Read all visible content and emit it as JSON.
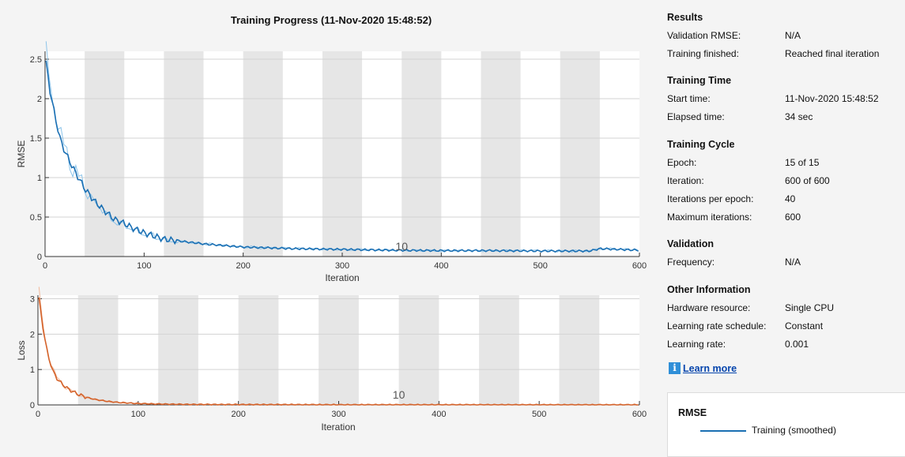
{
  "title": "Training Progress (11-Nov-2020 15:48:52)",
  "results": {
    "heading": "Results",
    "rows": [
      {
        "label": "Validation RMSE:",
        "value": "N/A"
      },
      {
        "label": "Training finished:",
        "value": "Reached final iteration"
      }
    ]
  },
  "training_time": {
    "heading": "Training Time",
    "rows": [
      {
        "label": "Start time:",
        "value": "11-Nov-2020 15:48:52"
      },
      {
        "label": "Elapsed time:",
        "value": "34 sec"
      }
    ]
  },
  "training_cycle": {
    "heading": "Training Cycle",
    "rows": [
      {
        "label": "Epoch:",
        "value": "15 of 15"
      },
      {
        "label": "Iteration:",
        "value": "600 of 600"
      },
      {
        "label": "Iterations per epoch:",
        "value": "40"
      },
      {
        "label": "Maximum iterations:",
        "value": "600"
      }
    ]
  },
  "validation": {
    "heading": "Validation",
    "rows": [
      {
        "label": "Frequency:",
        "value": "N/A"
      }
    ]
  },
  "other_info": {
    "heading": "Other Information",
    "rows": [
      {
        "label": "Hardware resource:",
        "value": "Single CPU"
      },
      {
        "label": "Learning rate schedule:",
        "value": "Constant"
      },
      {
        "label": "Learning rate:",
        "value": "0.001"
      }
    ]
  },
  "learn_more": {
    "label": "Learn more",
    "icon": "info-icon"
  },
  "legend": {
    "title": "RMSE",
    "items": [
      {
        "label": "Training (smoothed)",
        "color": "#1a6fb3"
      }
    ]
  },
  "chart_data": [
    {
      "type": "line",
      "title": "",
      "xlabel": "Iteration",
      "ylabel": "RMSE",
      "xlim": [
        0,
        600
      ],
      "ylim": [
        0,
        2.6
      ],
      "xticks": [
        "0",
        "100",
        "200",
        "300",
        "400",
        "500",
        "600"
      ],
      "yticks": [
        "0",
        "0.5",
        "1",
        "1.5",
        "2",
        "2.5"
      ],
      "epoch_label": "10",
      "epoch_label_iteration": 360,
      "iterations_per_epoch": 40,
      "grid": true,
      "colors": {
        "smoothed": "#1a6fb3",
        "raw": "#8cc4ea"
      },
      "series": [
        {
          "name": "Training (smoothed)",
          "x": [
            1,
            5,
            10,
            15,
            20,
            30,
            40,
            50,
            60,
            70,
            80,
            90,
            100,
            110,
            120,
            140,
            160,
            180,
            200,
            250,
            300,
            350,
            400,
            450,
            500,
            550,
            560,
            580,
            600
          ],
          "y": [
            2.45,
            2.1,
            1.78,
            1.5,
            1.33,
            1.08,
            0.86,
            0.7,
            0.58,
            0.47,
            0.42,
            0.35,
            0.3,
            0.26,
            0.22,
            0.19,
            0.16,
            0.14,
            0.12,
            0.1,
            0.09,
            0.08,
            0.075,
            0.075,
            0.07,
            0.07,
            0.1,
            0.09,
            0.08
          ]
        }
      ]
    },
    {
      "type": "line",
      "title": "",
      "xlabel": "Iteration",
      "ylabel": "Loss",
      "xlim": [
        0,
        600
      ],
      "ylim": [
        0,
        3.1
      ],
      "xticks": [
        "0",
        "100",
        "200",
        "300",
        "400",
        "500",
        "600"
      ],
      "yticks": [
        "0",
        "1",
        "2",
        "3"
      ],
      "epoch_label": "10",
      "epoch_label_iteration": 360,
      "iterations_per_epoch": 40,
      "grid": true,
      "colors": {
        "smoothed": "#d4622a",
        "raw": "#f0b89a"
      },
      "series": [
        {
          "name": "",
          "x": [
            1,
            3,
            6,
            10,
            15,
            20,
            30,
            40,
            50,
            60,
            70,
            80,
            100,
            120,
            150,
            200,
            300,
            400,
            500,
            600
          ],
          "y": [
            3.0,
            2.6,
            2.0,
            1.4,
            0.95,
            0.7,
            0.45,
            0.3,
            0.2,
            0.14,
            0.1,
            0.07,
            0.04,
            0.025,
            0.015,
            0.01,
            0.005,
            0.004,
            0.003,
            0.003
          ]
        }
      ]
    }
  ]
}
